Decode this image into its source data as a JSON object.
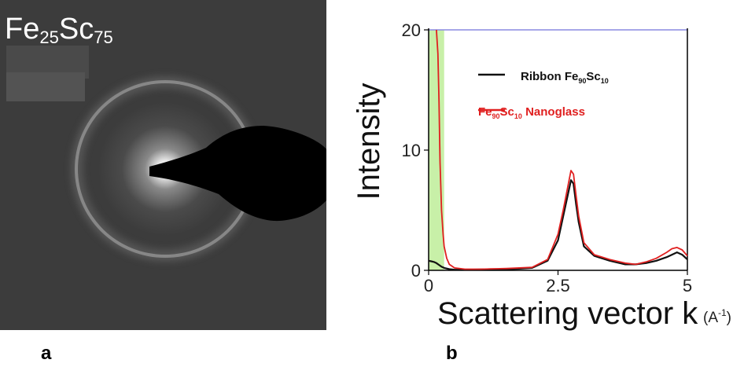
{
  "panel_a": {
    "label": "a",
    "composition_base": "Fe",
    "composition_sub1": "25",
    "composition_el2": "Sc",
    "composition_sub2": "75"
  },
  "panel_b": {
    "label": "b"
  },
  "chart_data": {
    "type": "line",
    "xlabel": "Scattering vector k",
    "xunit": "(A",
    "xunit_sup": "-1",
    "xunit_close": ")",
    "ylabel": "Intensity",
    "xlim": [
      0,
      5
    ],
    "ylim": [
      0,
      20
    ],
    "xticks": [
      "0",
      "2.5",
      "5"
    ],
    "yticks": [
      "0",
      "10",
      "20"
    ],
    "xtick_values": [
      0,
      2.5,
      5
    ],
    "ytick_values": [
      0,
      10,
      20
    ],
    "shaded_region": {
      "x": [
        0,
        0.3
      ],
      "color": "#c8f0a8"
    },
    "top_line_color": "#8a8ae0",
    "legend_position": "top-right",
    "series": [
      {
        "name_base": "Ribbon Fe",
        "name_sub1": "90",
        "name_el2": "Sc",
        "name_sub2": "10",
        "color": "#111111",
        "x": [
          0,
          0.05,
          0.1,
          0.15,
          0.2,
          0.25,
          0.3,
          0.4,
          0.5,
          0.8,
          1.2,
          1.6,
          2.0,
          2.3,
          2.5,
          2.6,
          2.7,
          2.75,
          2.8,
          2.85,
          2.9,
          3.0,
          3.2,
          3.5,
          3.8,
          4.0,
          4.2,
          4.4,
          4.6,
          4.8,
          4.9,
          5.0
        ],
        "y": [
          0.8,
          0.75,
          0.7,
          0.6,
          0.45,
          0.3,
          0.2,
          0.1,
          0.05,
          0.05,
          0.1,
          0.1,
          0.2,
          0.8,
          2.5,
          4.5,
          6.5,
          7.5,
          7.2,
          5.5,
          4.0,
          2.0,
          1.2,
          0.8,
          0.5,
          0.5,
          0.6,
          0.8,
          1.1,
          1.5,
          1.3,
          0.9
        ]
      },
      {
        "name_base": "Fe",
        "name_sub1": "90",
        "name_el2": "Sc",
        "name_sub2": "10",
        "name_rest": " Nanoglass",
        "color": "#e02020",
        "x": [
          0.15,
          0.18,
          0.2,
          0.22,
          0.25,
          0.28,
          0.3,
          0.35,
          0.4,
          0.5,
          0.7,
          1.0,
          1.5,
          2.0,
          2.3,
          2.5,
          2.6,
          2.7,
          2.75,
          2.8,
          2.85,
          2.9,
          3.0,
          3.2,
          3.5,
          3.8,
          4.0,
          4.2,
          4.4,
          4.6,
          4.7,
          4.8,
          4.9,
          5.0
        ],
        "y": [
          20,
          18,
          14,
          9,
          5,
          3,
          2,
          1,
          0.5,
          0.2,
          0.1,
          0.1,
          0.15,
          0.25,
          0.9,
          3.0,
          5.0,
          7.2,
          8.3,
          8.0,
          6.2,
          4.5,
          2.3,
          1.3,
          0.9,
          0.6,
          0.5,
          0.7,
          1.0,
          1.5,
          1.8,
          1.9,
          1.7,
          1.2
        ]
      }
    ]
  }
}
